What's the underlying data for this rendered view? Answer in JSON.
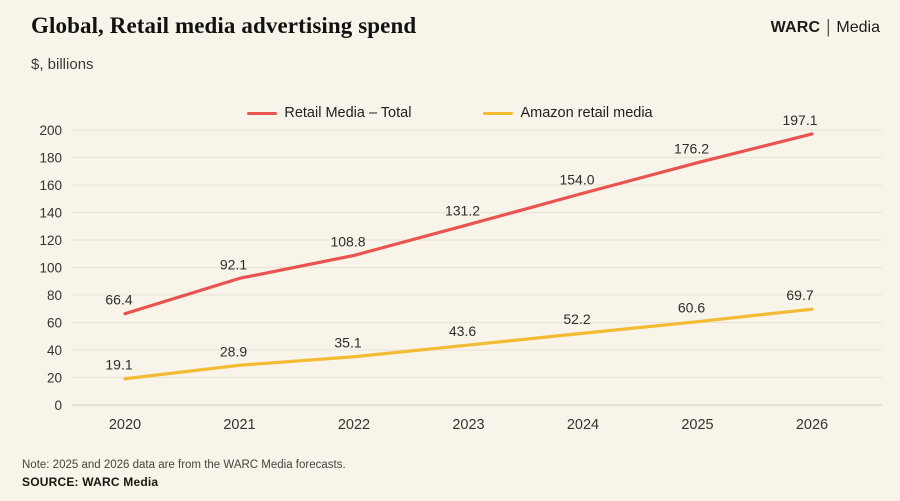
{
  "header": {
    "title": "Global, Retail media advertising spend",
    "subtitle": "$, billions",
    "brand": {
      "name": "WARC",
      "divider": "|",
      "suffix": "Media"
    }
  },
  "legend": [
    {
      "label": "Retail Media – Total",
      "color": "#EA5450"
    },
    {
      "label": "Amazon retail media",
      "color": "#F2BB33"
    }
  ],
  "chart_data": {
    "type": "line",
    "title": "Global, Retail media advertising spend",
    "unit_label": "$, billions",
    "x": [
      2020,
      2021,
      2022,
      2023,
      2024,
      2025,
      2026
    ],
    "series": [
      {
        "name": "Retail Media – Total",
        "color": "#EA5450",
        "values": [
          66.4,
          92.1,
          108.8,
          131.2,
          154.0,
          176.2,
          197.1
        ]
      },
      {
        "name": "Amazon retail media",
        "color": "#F2BB33",
        "values": [
          19.1,
          28.9,
          35.1,
          43.6,
          52.2,
          60.6,
          69.7
        ]
      }
    ],
    "ylim": [
      0,
      200
    ],
    "ytick_step": 20,
    "grid": "horizontal",
    "legend_position": "top-center",
    "value_labels": true
  },
  "footer": {
    "note": "Note: 2025 and 2026 data are from the WARC Media forecasts.",
    "source": "SOURCE: WARC Media"
  },
  "colors": {
    "background": "#F8F4E9",
    "grid": "#E9E5D8",
    "baseline": "#D9D5C7",
    "axis_text": "#333330",
    "value_text": "#2D2D2A"
  }
}
